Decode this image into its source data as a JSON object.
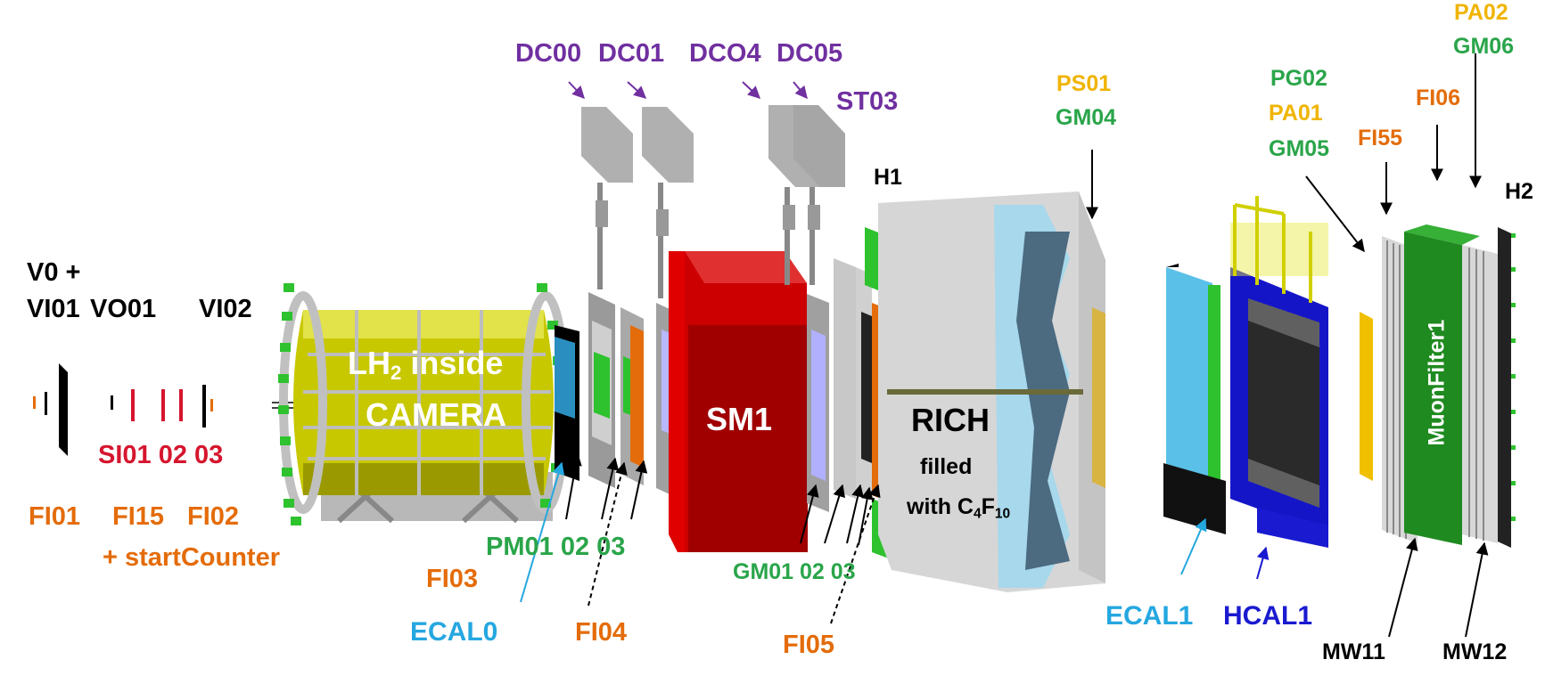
{
  "colors": {
    "black": "#000000",
    "orange": "#e46c0a",
    "red": "#d6152e",
    "green": "#2aa54a",
    "purple": "#7030a0",
    "gold": "#f0b400",
    "cyan": "#25a7e0",
    "blue": "#1a1ad0",
    "white": "#ffffff"
  },
  "labels": {
    "v0": "V0 +",
    "vi01": "VI01",
    "vo01": "VO01",
    "vi02": "VI02",
    "si": "SI01 02 03",
    "fi01": "FI01",
    "fi15": "FI15",
    "fi02": "FI02",
    "startcounter": "+ startCounter",
    "lh2_pre": "LH",
    "lh2_sub": "2",
    "lh2_post": " inside",
    "camera": "CAMERA",
    "pm": "PM01 02 03",
    "fi03": "FI03",
    "ecal0": "ECAL0",
    "fi04": "FI04",
    "dc00": "DC00",
    "dc01": "DC01",
    "dc04": "DCO4",
    "dc05": "DC05",
    "st03": "ST03",
    "sm1": "SM1",
    "gm": "GM01 02 03",
    "fi05": "FI05",
    "h1": "H1",
    "rich": "RICH",
    "filled": "filled",
    "with_pre": "with C",
    "with_sub1": "4",
    "with_mid": "F",
    "with_sub2": "10",
    "ps01": "PS01",
    "gm04": "GM04",
    "pg02": "PG02",
    "pa01": "PA01",
    "gm05": "GM05",
    "fi55": "FI55",
    "fi06": "FI06",
    "pa02": "PA02",
    "gm06": "GM06",
    "h2": "H2",
    "muonfilter": "MuonFilter1",
    "ecal1": "ECAL1",
    "hcal1": "HCAL1",
    "mw11": "MW11",
    "mw12": "MW12"
  }
}
